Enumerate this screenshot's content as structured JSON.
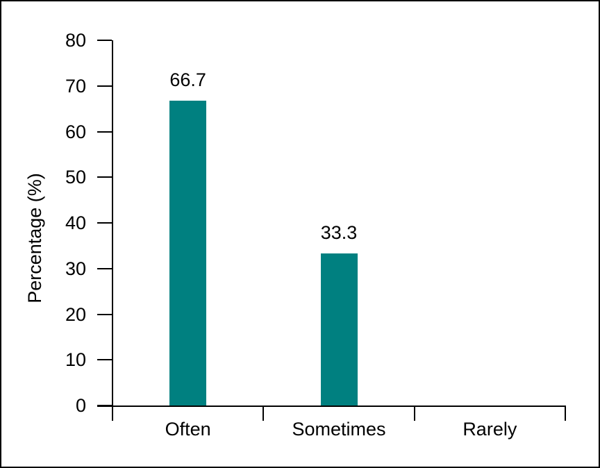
{
  "chart_data": {
    "type": "bar",
    "categories": [
      "Often",
      "Sometimes",
      "Rarely"
    ],
    "values": [
      66.7,
      33.3,
      0
    ],
    "value_labels": [
      "66.7",
      "33.3",
      ""
    ],
    "title": "",
    "xlabel": "",
    "ylabel": "Percentage (%)",
    "ylim": [
      0,
      80
    ],
    "ytick_step": 10,
    "grid": false,
    "legend": "none",
    "bar_color": "#008080",
    "axis_color": "#000000",
    "text_color": "#000000",
    "background_color": "#ffffff",
    "frame_border_color": "#000000"
  }
}
